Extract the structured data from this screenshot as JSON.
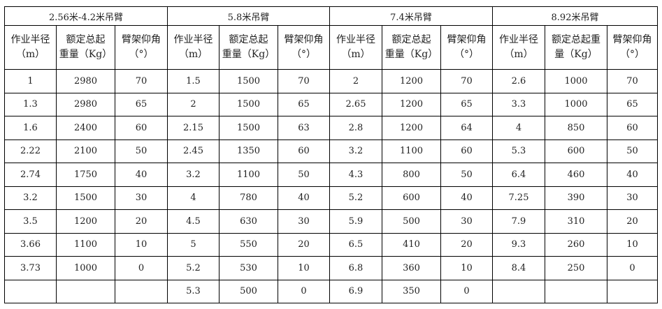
{
  "groups": [
    {
      "title": "2.56米-4.2米吊臂",
      "headers": [
        [
          "作业半径",
          "（m）"
        ],
        [
          "额定总起",
          "重量（Kg）"
        ],
        [
          "臂架仰角",
          "（°）"
        ]
      ],
      "rows": [
        [
          "1",
          "2980",
          "70"
        ],
        [
          "1.3",
          "2980",
          "65"
        ],
        [
          "1.6",
          "2400",
          "60"
        ],
        [
          "2.22",
          "2100",
          "50"
        ],
        [
          "2.74",
          "1750",
          "40"
        ],
        [
          "3.2",
          "1500",
          "30"
        ],
        [
          "3.5",
          "1200",
          "20"
        ],
        [
          "3.66",
          "1100",
          "10"
        ],
        [
          "3.73",
          "1000",
          "0"
        ],
        [
          "",
          "",
          ""
        ]
      ]
    },
    {
      "title": "5.8米吊臂",
      "headers": [
        [
          "作业半径",
          "（m）"
        ],
        [
          "额定总起",
          "重量（Kg）"
        ],
        [
          "臂架仰角",
          "（°）"
        ]
      ],
      "rows": [
        [
          "1.5",
          "1500",
          "70"
        ],
        [
          "2",
          "1500",
          "65"
        ],
        [
          "2.15",
          "1500",
          "63"
        ],
        [
          "2.45",
          "1350",
          "60"
        ],
        [
          "3.2",
          "1100",
          "50"
        ],
        [
          "4",
          "780",
          "40"
        ],
        [
          "4.5",
          "630",
          "30"
        ],
        [
          "5",
          "550",
          "20"
        ],
        [
          "5.2",
          "530",
          "10"
        ],
        [
          "5.3",
          "500",
          "0"
        ]
      ]
    },
    {
      "title": "7.4米吊臂",
      "headers": [
        [
          "作业半径",
          "（m）"
        ],
        [
          "额定总起",
          "重量（Kg）"
        ],
        [
          "臂架仰角",
          "（°）"
        ]
      ],
      "rows": [
        [
          "2",
          "1200",
          "70"
        ],
        [
          "2.65",
          "1200",
          "65"
        ],
        [
          "2.8",
          "1200",
          "64"
        ],
        [
          "3.2",
          "1100",
          "60"
        ],
        [
          "4.3",
          "800",
          "50"
        ],
        [
          "5.2",
          "600",
          "40"
        ],
        [
          "5.9",
          "500",
          "30"
        ],
        [
          "6.5",
          "410",
          "20"
        ],
        [
          "6.8",
          "360",
          "10"
        ],
        [
          "6.9",
          "350",
          "0"
        ]
      ]
    },
    {
      "title": "8.92米吊臂",
      "headers": [
        [
          "作业半径",
          "（m）"
        ],
        [
          "额定总起重",
          "量（Kg）"
        ],
        [
          "臂架仰角",
          "（°）"
        ]
      ],
      "rows": [
        [
          "2.6",
          "1000",
          "70"
        ],
        [
          "3.3",
          "1000",
          "65"
        ],
        [
          "4",
          "850",
          "60"
        ],
        [
          "5.3",
          "600",
          "50"
        ],
        [
          "6.4",
          "460",
          "40"
        ],
        [
          "7.25",
          "390",
          "30"
        ],
        [
          "7.9",
          "310",
          "20"
        ],
        [
          "9.3",
          "260",
          "10"
        ],
        [
          "8.4",
          "250",
          "0"
        ],
        [
          "",
          "",
          ""
        ]
      ]
    }
  ]
}
